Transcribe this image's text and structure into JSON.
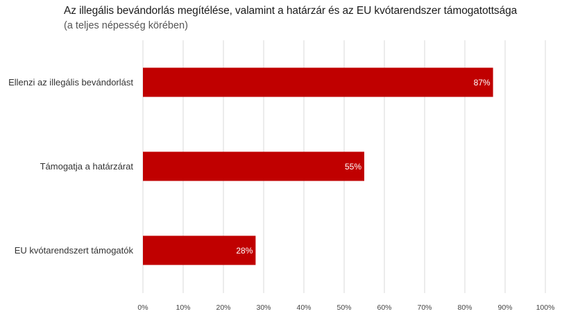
{
  "chart_data": {
    "type": "bar",
    "orientation": "horizontal",
    "title": "Az illegális bevándorlás megítélése, valamint a határzár és az EU kvótarendszer támogatottsága",
    "subtitle": "(a teljes népesség körében)",
    "categories": [
      "Ellenzi az illegális bevándorlást",
      "Támogatja a határzárat",
      "EU kvótarendszert támogatók"
    ],
    "values": [
      87,
      55,
      28
    ],
    "data_labels": [
      "87%",
      "55%",
      "28%"
    ],
    "xlim": [
      0,
      100
    ],
    "x_ticks": [
      "0%",
      "10%",
      "20%",
      "30%",
      "40%",
      "50%",
      "60%",
      "70%",
      "80%",
      "90%",
      "100%"
    ],
    "grid": "vertical",
    "legend": "none",
    "bar_color": "#c00000"
  }
}
